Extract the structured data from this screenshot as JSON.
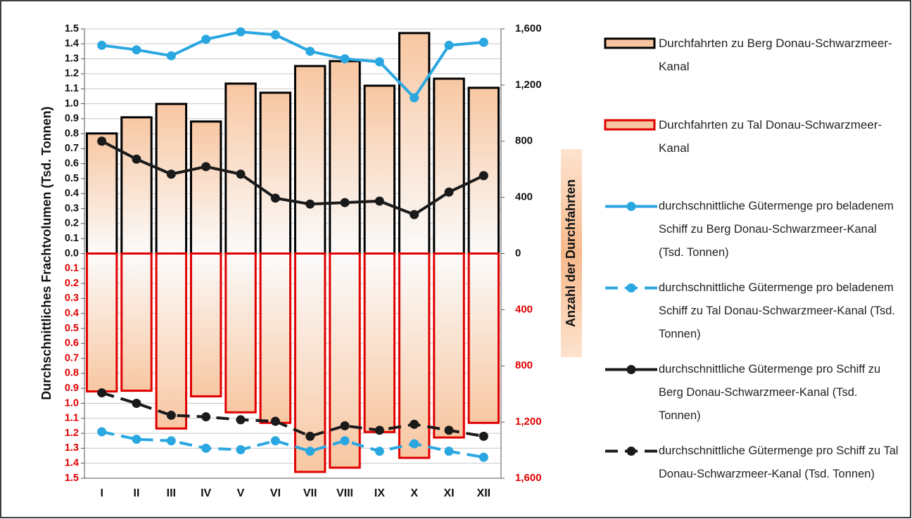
{
  "chart_data": {
    "type": "bar_line",
    "ylabel": "Durchschnittliches Frachtvolumen (Tsd. Tonnen)",
    "y2label": "Anzahl der Durchfahrten",
    "categories": [
      "I",
      "II",
      "III",
      "IV",
      "V",
      "VI",
      "VII",
      "VIII",
      "IX",
      "X",
      "XI",
      "XII"
    ],
    "ylim": [
      -1.5,
      1.5
    ],
    "yticks": [
      1.5,
      1.4,
      1.3,
      1.2,
      1.1,
      {
        "value": 1,
        "label": "1.0"
      },
      0.9,
      0.8,
      0.7,
      0.6,
      0.5,
      0.4,
      0.3,
      0.2,
      0.1,
      {
        "value": 0,
        "label": "0.0"
      },
      {
        "value": -0.1,
        "label": "0.1"
      },
      {
        "value": -0.2,
        "label": "0.2"
      },
      {
        "value": -0.3,
        "label": "0.3"
      },
      {
        "value": -0.4,
        "label": "0.4"
      },
      {
        "value": -0.5,
        "label": "0.5"
      },
      {
        "value": -0.6,
        "label": "0.6"
      },
      {
        "value": -0.7,
        "label": "0.7"
      },
      {
        "value": -0.8,
        "label": "0.8"
      },
      {
        "value": -0.9,
        "label": "0.9"
      },
      {
        "value": -1,
        "label": "1.0"
      },
      {
        "value": -1.1,
        "label": "1.1"
      },
      {
        "value": -1.2,
        "label": "1.2"
      },
      {
        "value": -1.3,
        "label": "1.3"
      },
      {
        "value": -1.4,
        "label": "1.4"
      },
      {
        "value": -1.5,
        "label": "1.5"
      }
    ],
    "y2lim": [
      -1600,
      1600
    ],
    "y2ticks": [
      {
        "value": 1600,
        "label": "1,600"
      },
      {
        "value": 1200,
        "label": "1,200"
      },
      800,
      400,
      0,
      {
        "value": -400,
        "label": "400"
      },
      {
        "value": -800,
        "label": "800"
      },
      {
        "value": -1200,
        "label": "1,200"
      },
      {
        "value": -1600,
        "label": "1,600"
      }
    ],
    "negative_tick_color": "#e00000",
    "grid": true,
    "series": [
      {
        "name": "Durchfahrten zu Berg Donau-Schwarzmeer-Kanal",
        "type": "bar",
        "axis": "y2",
        "color": "#000000",
        "fill": "#f8c7a2",
        "values": [
          855,
          970,
          1065,
          940,
          1210,
          1145,
          1335,
          1370,
          1195,
          1570,
          1245,
          1180
        ]
      },
      {
        "name": "Durchfahrten zu Tal Donau-Schwarzmeer-Kanal",
        "type": "bar",
        "axis": "y2",
        "color": "#e00000",
        "fill": "#f8c7a2",
        "values": [
          -982,
          -977,
          -1246,
          -1017,
          -1131,
          -1206,
          -1555,
          -1525,
          -1271,
          -1455,
          -1310,
          -1206
        ]
      },
      {
        "name": "durchschnittliche Gütermenge pro beladenem Schiff zu Berg Donau-Schwarzmeer-Kanal (Tsd. Tonnen)",
        "type": "line",
        "color": "#2aa7e0",
        "dashed": false,
        "values": [
          1.39,
          1.36,
          1.32,
          1.43,
          1.48,
          1.46,
          1.35,
          1.3,
          1.28,
          1.04,
          1.39,
          1.41
        ]
      },
      {
        "name": "durchschnittliche Gütermenge pro beladenem Schiff zu Tal Donau-Schwarzmeer-Kanal (Tsd. Tonnen)",
        "type": "line",
        "color": "#2aa7e0",
        "dashed": true,
        "values": [
          -1.19,
          -1.24,
          -1.25,
          -1.3,
          -1.31,
          -1.25,
          -1.32,
          -1.25,
          -1.32,
          -1.27,
          -1.32,
          -1.36
        ]
      },
      {
        "name": "durchschnittliche Gütermenge pro Schiff zu Berg Donau-Schwarzmeer-Kanal (Tsd. Tonnen)",
        "type": "line",
        "color": "#1a1a1a",
        "dashed": false,
        "values": [
          0.75,
          0.63,
          0.53,
          0.58,
          0.53,
          0.37,
          0.33,
          0.34,
          0.35,
          0.26,
          0.41,
          0.52
        ]
      },
      {
        "name": "durchschnittliche Gütermenge pro Schiff zu Tal Donau-Schwarzmeer-Kanal (Tsd. Tonnen)",
        "type": "line",
        "color": "#1a1a1a",
        "dashed": true,
        "values": [
          -0.93,
          -1,
          -1.08,
          -1.09,
          -1.11,
          -1.12,
          -1.22,
          -1.15,
          -1.18,
          -1.14,
          -1.18,
          -1.22
        ]
      }
    ]
  }
}
